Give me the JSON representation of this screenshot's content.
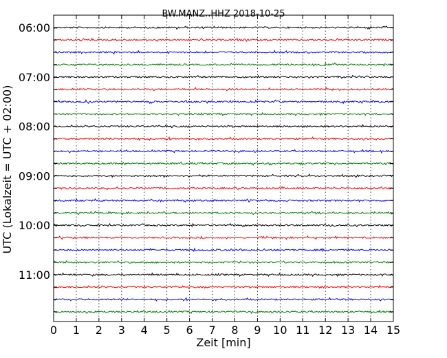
{
  "chart_data": {
    "type": "line",
    "title": "BW.MANZ..HHZ 2018-10-25",
    "xlabel": "Zeit  [min]",
    "ylabel": "UTC (Lokalzeit = UTC + 02:00)",
    "xlim": [
      0,
      15
    ],
    "x_ticks": [
      "0",
      "1",
      "2",
      "3",
      "4",
      "5",
      "6",
      "7",
      "8",
      "9",
      "10",
      "11",
      "12",
      "13",
      "14",
      "15"
    ],
    "y_tick_labels": [
      "06:00",
      "07:00",
      "08:00",
      "09:00",
      "10:00",
      "11:00"
    ],
    "grid": "vertical dotted lines at each minute",
    "trace_start_times": [
      "06:00",
      "06:15",
      "06:30",
      "06:45",
      "07:00",
      "07:15",
      "07:30",
      "07:45",
      "08:00",
      "08:15",
      "08:30",
      "08:45",
      "09:00",
      "09:15",
      "09:30",
      "09:45",
      "10:00",
      "10:15",
      "10:30",
      "10:45",
      "11:00",
      "11:15",
      "11:30",
      "11:45"
    ],
    "trace_colors": [
      "#000000",
      "#ff0000",
      "#0000ff",
      "#008000"
    ]
  }
}
